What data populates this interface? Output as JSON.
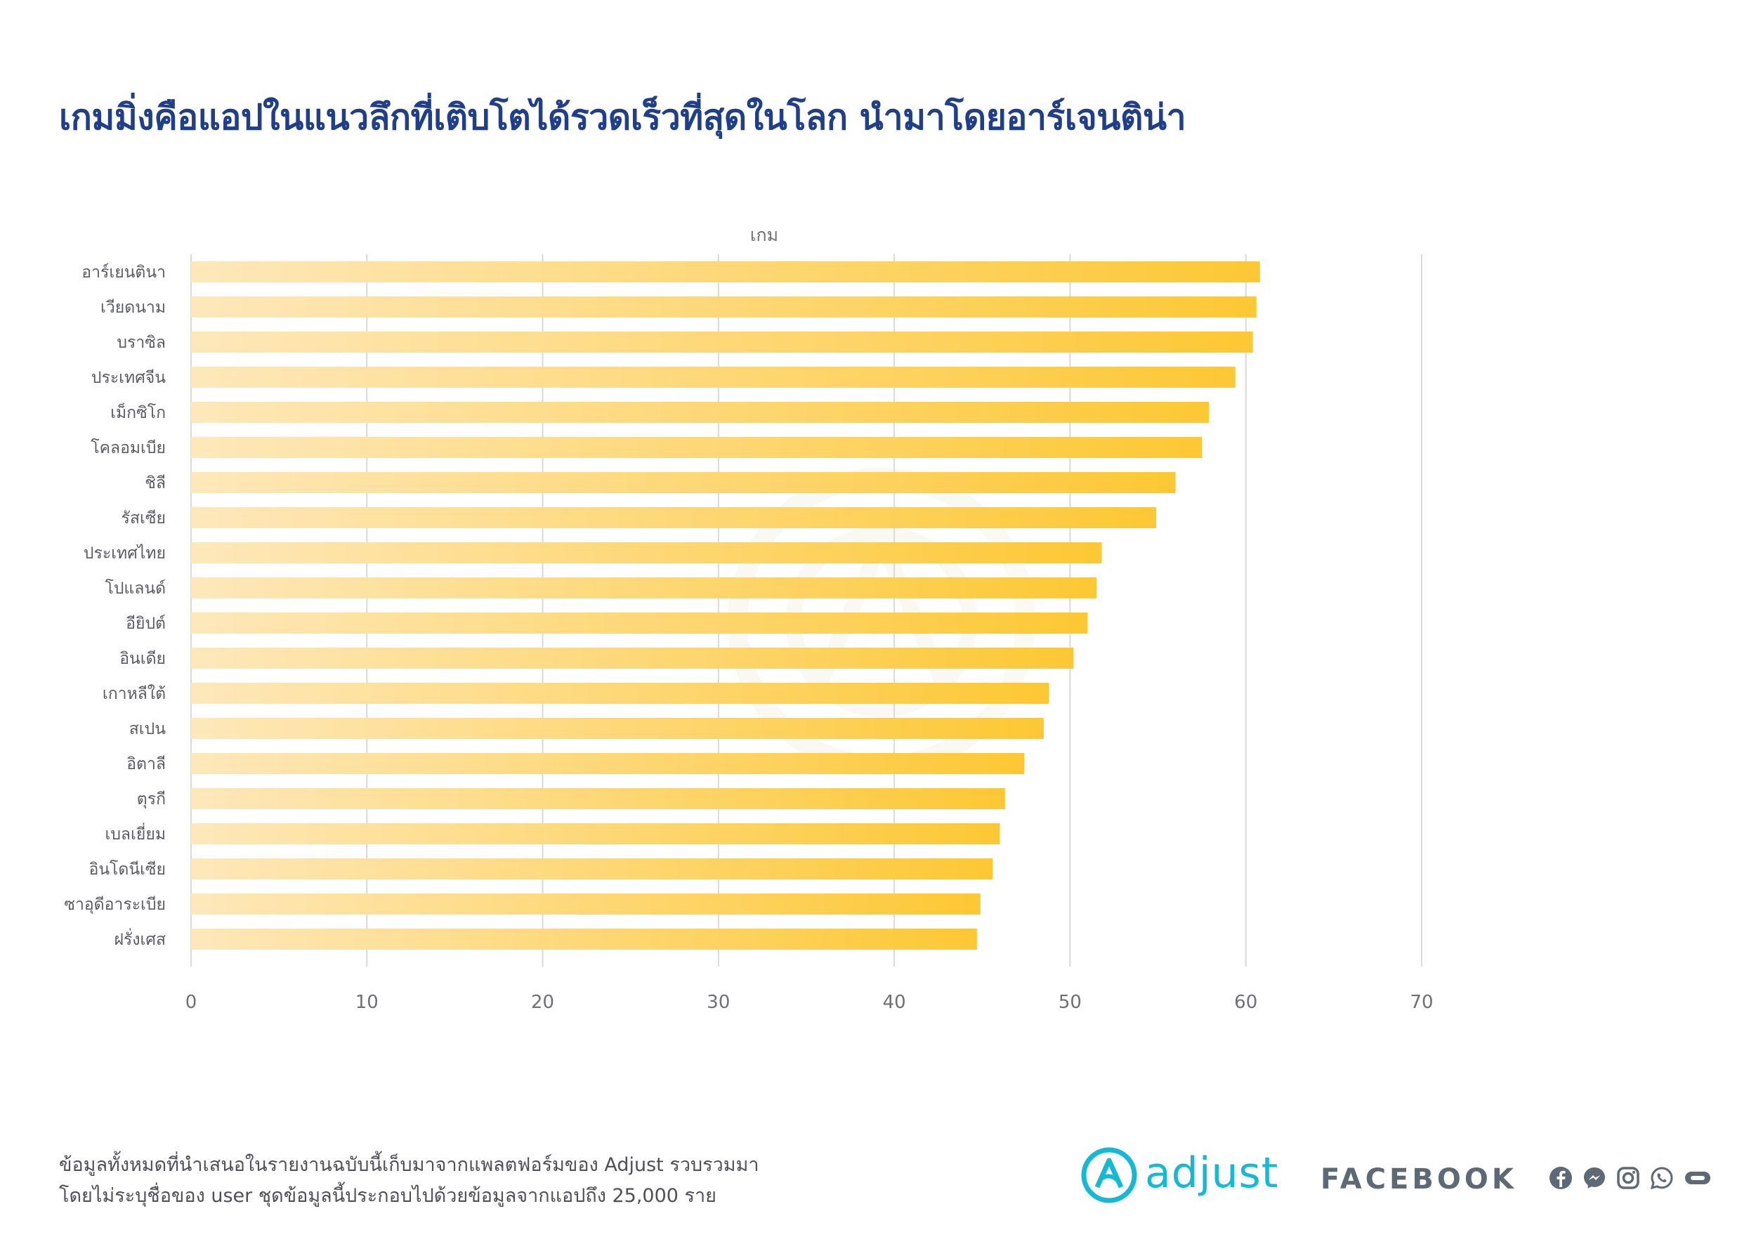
{
  "title": "เกมมิ่งคือแอปในแนวลึกที่เติบโตได้รวดเร็วที่สุดในโลก นำมาโดยอาร์เจนติน่า",
  "footnote": {
    "line1": "ข้อมูลทั้งหมดที่นำเสนอในรายงานฉบับนี้เก็บมาจากแพลตฟอร์มของ Adjust รวบรวมมา",
    "line2": "โดยไม่ระบุชื่อของ user ชุดข้อมูลนี้ประกอบไปด้วยข้อมูลจากแอปถึง 25,000 ราย"
  },
  "brands": {
    "adjust": "adjust",
    "facebook": "FACEBOOK"
  },
  "icons": [
    "adjust-logo-icon",
    "facebook-icon",
    "messenger-icon",
    "instagram-icon",
    "whatsapp-icon",
    "oculus-icon"
  ],
  "colors": {
    "title": "#1f3e8c",
    "bar_start": "#fee8bb",
    "bar_end": "#fdc834",
    "grid": "#d9d9d9",
    "axis_text": "#6f6f7a",
    "adjust": "#14b9d5",
    "facebook": "#5d6974"
  },
  "chart_data": {
    "type": "bar",
    "orientation": "horizontal",
    "title": "เกม",
    "categories": [
      "อาร์เยนตินา",
      "เวียดนาม",
      "บราซิล",
      "ประเทศจีน",
      "เม็กซิโก",
      "โคลอมเบีย",
      "ชิลี",
      "รัสเซีย",
      "ประเทศไทย",
      "โปแลนด์",
      "อียิปต์",
      "อินเดีย",
      "เกาหลีใต้",
      "สเปน",
      "อิตาลี",
      "ตุรกี",
      "เบลเยี่ยม",
      "อินโดนีเซีย",
      "ซาอุดีอาระเบีย",
      "ฝรั่งเศส"
    ],
    "values": [
      60.8,
      60.6,
      60.4,
      59.4,
      57.9,
      57.5,
      56.0,
      54.9,
      51.8,
      51.5,
      51.0,
      50.2,
      48.8,
      48.5,
      47.4,
      46.3,
      46.0,
      45.6,
      44.9,
      44.7
    ],
    "xlim": [
      0,
      70
    ],
    "xticks": [
      "0",
      "10",
      "20",
      "30",
      "40",
      "50",
      "60",
      "70"
    ],
    "grid": true,
    "legend": "none"
  }
}
